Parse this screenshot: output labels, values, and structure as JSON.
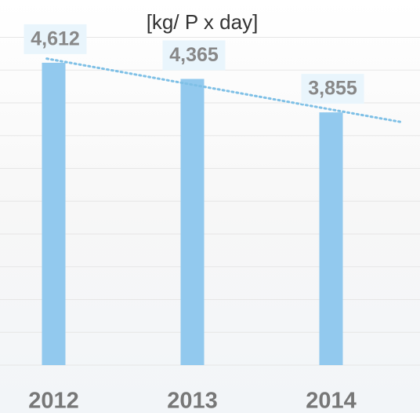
{
  "chart_data": {
    "type": "bar",
    "title": "[kg/ P x day]",
    "categories": [
      "2012",
      "2013",
      "2014"
    ],
    "values": [
      4612,
      4365,
      3855
    ],
    "value_labels": [
      "4,612",
      "4,365",
      "3,855"
    ],
    "color": "#92c9ee",
    "ylim": [
      0,
      5000
    ],
    "yticks": [
      0,
      500,
      1000,
      1500,
      2000,
      2500,
      3000,
      3500,
      4000,
      4500,
      5000
    ],
    "grid": true,
    "trendline": true
  }
}
